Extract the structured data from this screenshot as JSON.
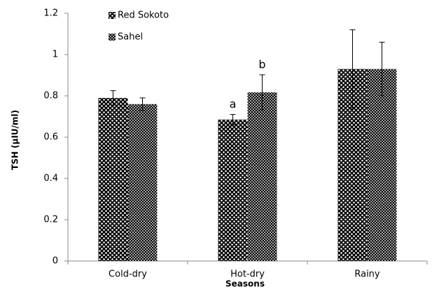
{
  "chart_data": {
    "type": "bar",
    "categories": [
      "Cold-dry",
      "Hot-dry",
      "Rainy"
    ],
    "series": [
      {
        "name": "Red Sokoto",
        "color": "#000000",
        "values": [
          0.79,
          0.685,
          0.93
        ],
        "errors": [
          0.035,
          0.025,
          0.19
        ],
        "labels": [
          null,
          "a",
          null
        ]
      },
      {
        "name": "Sahel",
        "color": "#000000",
        "values": [
          0.76,
          0.817,
          0.93
        ],
        "errors": [
          0.03,
          0.085,
          0.13
        ],
        "labels": [
          null,
          "b",
          null
        ]
      }
    ],
    "xlabel": "Seasons",
    "ylabel": "TSH (µIU/ml)",
    "ylim": [
      0,
      1.2
    ],
    "yticks": [
      0,
      0.2,
      0.4,
      0.6,
      0.8,
      1,
      1.2
    ],
    "grid": false,
    "legend": "upper left"
  }
}
